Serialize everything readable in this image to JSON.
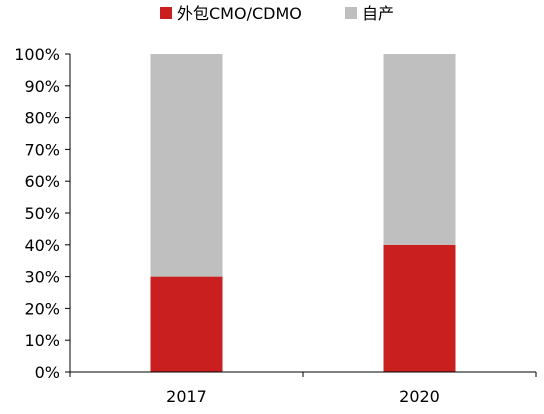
{
  "chart_data": {
    "type": "bar",
    "stacked": true,
    "categories": [
      "2017",
      "2020"
    ],
    "series": [
      {
        "name": "外包CMO/CDMO",
        "color": "#c9201f",
        "values": [
          30,
          40
        ]
      },
      {
        "name": "自产",
        "color": "#bfbfbf",
        "values": [
          70,
          60
        ]
      }
    ],
    "ylim": [
      0,
      100
    ],
    "yticks": [
      "0%",
      "10%",
      "20%",
      "30%",
      "40%",
      "50%",
      "60%",
      "70%",
      "80%",
      "90%",
      "100%"
    ],
    "legend_position": "top",
    "grid": false
  }
}
